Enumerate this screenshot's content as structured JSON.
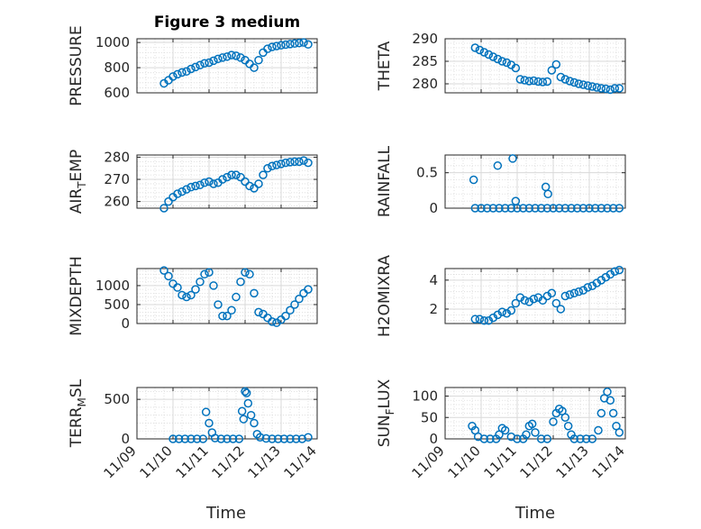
{
  "figure": {
    "title": "Figure 3 medium",
    "marker_color": "#0072BD",
    "grid_color": "#d9d9d9",
    "axis_color": "#262626"
  },
  "x_axis": {
    "label": "Time",
    "range": [
      "11/09",
      "11/14"
    ],
    "ticks": [
      "11/09",
      "11/10",
      "11/11",
      "11/12",
      "11/13",
      "11/14"
    ]
  },
  "chart_data": [
    {
      "type": "scatter",
      "ylabel": "PRESSURE",
      "ylim": [
        600,
        1030
      ],
      "yticks": [
        "600",
        "800",
        "1000"
      ],
      "x": [
        "11/09 18:00",
        "11/09 21:00",
        "11/10 00:00",
        "11/10 03:00",
        "11/10 06:00",
        "11/10 09:00",
        "11/10 12:00",
        "11/10 15:00",
        "11/10 18:00",
        "11/10 21:00",
        "11/11 00:00",
        "11/11 03:00",
        "11/11 06:00",
        "11/11 09:00",
        "11/11 12:00",
        "11/11 15:00",
        "11/11 18:00",
        "11/11 21:00",
        "11/12 00:00",
        "11/12 03:00",
        "11/12 06:00",
        "11/12 09:00",
        "11/12 12:00",
        "11/12 15:00",
        "11/12 18:00",
        "11/12 21:00",
        "11/13 00:00",
        "11/13 03:00",
        "11/13 06:00",
        "11/13 09:00",
        "11/13 12:00",
        "11/13 15:00",
        "11/13 18:00"
      ],
      "y": [
        675,
        700,
        730,
        748,
        762,
        770,
        790,
        805,
        820,
        835,
        840,
        855,
        870,
        880,
        888,
        900,
        895,
        880,
        860,
        830,
        800,
        860,
        920,
        950,
        965,
        972,
        978,
        983,
        988,
        992,
        996,
        1000,
        985
      ]
    },
    {
      "type": "scatter",
      "ylabel": "THETA",
      "ylim": [
        278,
        290
      ],
      "yticks": [
        "280",
        "285",
        "290"
      ],
      "x": [
        "11/09 20:00",
        "11/09 23:00",
        "11/10 02:00",
        "11/10 05:00",
        "11/10 08:00",
        "11/10 11:00",
        "11/10 14:00",
        "11/10 17:00",
        "11/10 20:00",
        "11/10 23:00",
        "11/11 02:00",
        "11/11 05:00",
        "11/11 08:00",
        "11/11 11:00",
        "11/11 14:00",
        "11/11 17:00",
        "11/11 20:00",
        "11/11 23:00",
        "11/12 02:00",
        "11/12 05:00",
        "11/12 08:00",
        "11/12 11:00",
        "11/12 14:00",
        "11/12 17:00",
        "11/12 20:00",
        "11/12 23:00",
        "11/13 02:00",
        "11/13 05:00",
        "11/13 08:00",
        "11/13 11:00",
        "11/13 14:00",
        "11/13 17:00",
        "11/13 20:00"
      ],
      "y": [
        288,
        287.5,
        287,
        286.5,
        286,
        285.5,
        285,
        284.7,
        284.2,
        283.5,
        281,
        280.8,
        280.6,
        280.7,
        280.5,
        280.4,
        280.5,
        283,
        284.3,
        281.5,
        281,
        280.6,
        280.3,
        280,
        279.8,
        279.6,
        279.4,
        279.2,
        279,
        278.9,
        278.7,
        279,
        279
      ]
    },
    {
      "type": "scatter",
      "ylabel": "AIR_TEMP",
      "ylim": [
        257,
        281
      ],
      "yticks": [
        "260",
        "270",
        "280"
      ],
      "x": [
        "11/09 18:00",
        "11/09 21:00",
        "11/10 00:00",
        "11/10 03:00",
        "11/10 06:00",
        "11/10 09:00",
        "11/10 12:00",
        "11/10 15:00",
        "11/10 18:00",
        "11/10 21:00",
        "11/11 00:00",
        "11/11 03:00",
        "11/11 06:00",
        "11/11 09:00",
        "11/11 12:00",
        "11/11 15:00",
        "11/11 18:00",
        "11/11 21:00",
        "11/12 00:00",
        "11/12 03:00",
        "11/12 06:00",
        "11/12 09:00",
        "11/12 12:00",
        "11/12 15:00",
        "11/12 18:00",
        "11/12 21:00",
        "11/13 00:00",
        "11/13 03:00",
        "11/13 06:00",
        "11/13 09:00",
        "11/13 12:00",
        "11/13 15:00",
        "11/13 18:00"
      ],
      "y": [
        257,
        260,
        262,
        263.5,
        264.5,
        265.5,
        266.5,
        267,
        267.5,
        268.5,
        269,
        268,
        268.5,
        270,
        271,
        272,
        272,
        271,
        269,
        267,
        266,
        268,
        272,
        275,
        276,
        276.5,
        277,
        277.5,
        277.8,
        278,
        278,
        278.5,
        277.5
      ]
    },
    {
      "type": "scatter",
      "ylabel": "RAINFALL",
      "ylim": [
        0,
        0.75
      ],
      "yticks": [
        "0",
        "0.5"
      ],
      "x": [
        "11/09 20:00",
        "11/10 00:00",
        "11/10 04:00",
        "11/10 08:00",
        "11/10 12:00",
        "11/10 16:00",
        "11/10 20:00",
        "11/11 00:00",
        "11/11 04:00",
        "11/11 08:00",
        "11/11 12:00",
        "11/11 16:00",
        "11/11 20:00",
        "11/12 00:00",
        "11/12 04:00",
        "11/12 08:00",
        "11/12 12:00",
        "11/12 16:00",
        "11/12 20:00",
        "11/13 00:00",
        "11/13 04:00",
        "11/13 08:00",
        "11/13 12:00",
        "11/13 16:00",
        "11/13 20:00",
        "11/09 19:00",
        "11/10 11:00",
        "11/10 21:00",
        "11/10 23:00",
        "11/11 19:00",
        "11/11 20:30"
      ],
      "y": [
        0,
        0,
        0,
        0,
        0,
        0,
        0,
        0,
        0,
        0,
        0,
        0,
        0,
        0,
        0,
        0,
        0,
        0,
        0,
        0,
        0,
        0,
        0,
        0,
        0,
        0.4,
        0.6,
        0.7,
        0.1,
        0.3,
        0.2
      ]
    },
    {
      "type": "scatter",
      "ylabel": "MIXDEPTH",
      "ylim": [
        0,
        1450
      ],
      "yticks": [
        "0",
        "500",
        "1000"
      ],
      "x": [
        "11/09 18:00",
        "11/09 21:00",
        "11/10 00:00",
        "11/10 03:00",
        "11/10 06:00",
        "11/10 09:00",
        "11/10 12:00",
        "11/10 15:00",
        "11/10 18:00",
        "11/10 21:00",
        "11/11 00:00",
        "11/11 03:00",
        "11/11 06:00",
        "11/11 09:00",
        "11/11 12:00",
        "11/11 15:00",
        "11/11 18:00",
        "11/11 21:00",
        "11/12 00:00",
        "11/12 03:00",
        "11/12 06:00",
        "11/12 09:00",
        "11/12 12:00",
        "11/12 15:00",
        "11/12 18:00",
        "11/12 21:00",
        "11/13 00:00",
        "11/13 03:00",
        "11/13 06:00",
        "11/13 09:00",
        "11/13 12:00",
        "11/13 15:00",
        "11/13 18:00"
      ],
      "y": [
        1400,
        1250,
        1050,
        950,
        750,
        700,
        750,
        900,
        1100,
        1300,
        1350,
        1000,
        500,
        200,
        200,
        350,
        700,
        1100,
        1350,
        1300,
        800,
        300,
        250,
        150,
        50,
        20,
        100,
        200,
        350,
        500,
        650,
        800,
        900
      ]
    },
    {
      "type": "scatter",
      "ylabel": "H2OMIXRA",
      "ylim": [
        1,
        4.8
      ],
      "yticks": [
        "2",
        "4"
      ],
      "x": [
        "11/09 20:00",
        "11/09 23:00",
        "11/10 02:00",
        "11/10 05:00",
        "11/10 08:00",
        "11/10 11:00",
        "11/10 14:00",
        "11/10 17:00",
        "11/10 20:00",
        "11/10 23:00",
        "11/11 02:00",
        "11/11 05:00",
        "11/11 08:00",
        "11/11 11:00",
        "11/11 14:00",
        "11/11 17:00",
        "11/11 20:00",
        "11/11 23:00",
        "11/12 02:00",
        "11/12 05:00",
        "11/12 08:00",
        "11/12 11:00",
        "11/12 14:00",
        "11/12 17:00",
        "11/12 20:00",
        "11/12 23:00",
        "11/13 02:00",
        "11/13 05:00",
        "11/13 08:00",
        "11/13 11:00",
        "11/13 14:00",
        "11/13 17:00",
        "11/13 20:00"
      ],
      "y": [
        1.3,
        1.3,
        1.2,
        1.2,
        1.4,
        1.6,
        1.8,
        1.7,
        1.9,
        2.4,
        2.8,
        2.6,
        2.5,
        2.7,
        2.8,
        2.6,
        2.9,
        3.1,
        2.4,
        2.0,
        2.9,
        3.0,
        3.1,
        3.2,
        3.3,
        3.5,
        3.6,
        3.8,
        4.0,
        4.2,
        4.4,
        4.6,
        4.7
      ]
    },
    {
      "type": "scatter",
      "ylabel": "TERR_MSL",
      "ylim": [
        0,
        650
      ],
      "yticks": [
        "0",
        "500"
      ],
      "x": [
        "11/10 00:00",
        "11/10 04:00",
        "11/10 08:00",
        "11/10 12:00",
        "11/10 16:00",
        "11/10 20:00",
        "11/11 00:00",
        "11/11 02:00",
        "11/11 04:00",
        "11/11 08:00",
        "11/11 12:00",
        "11/11 16:00",
        "11/11 20:00",
        "11/11 22:00",
        "11/12 00:00",
        "11/12 02:00",
        "11/12 04:00",
        "11/12 06:00",
        "11/12 08:00",
        "11/12 10:00",
        "11/12 14:00",
        "11/12 18:00",
        "11/12 22:00",
        "11/13 02:00",
        "11/13 06:00",
        "11/13 10:00",
        "11/13 14:00",
        "11/13 18:00",
        "11/10 22:00",
        "11/11 23:00",
        "11/12 01:00"
      ],
      "y": [
        0,
        0,
        0,
        0,
        0,
        0,
        200,
        80,
        10,
        0,
        0,
        0,
        0,
        350,
        600,
        450,
        300,
        200,
        60,
        20,
        5,
        0,
        0,
        0,
        0,
        0,
        0,
        20,
        340,
        250,
        580
      ]
    },
    {
      "type": "scatter",
      "ylabel": "SUN_FLUX",
      "ylim": [
        0,
        120
      ],
      "yticks": [
        "0",
        "50",
        "100"
      ],
      "x": [
        "11/09 18:00",
        "11/09 20:00",
        "11/09 22:00",
        "11/10 02:00",
        "11/10 06:00",
        "11/10 10:00",
        "11/10 12:00",
        "11/10 14:00",
        "11/10 16:00",
        "11/10 20:00",
        "11/11 00:00",
        "11/11 04:00",
        "11/11 06:00",
        "11/11 08:00",
        "11/11 10:00",
        "11/11 12:00",
        "11/11 16:00",
        "11/11 20:00",
        "11/12 00:00",
        "11/12 02:00",
        "11/12 04:00",
        "11/12 06:00",
        "11/12 08:00",
        "11/12 10:00",
        "11/12 12:00",
        "11/12 14:00",
        "11/12 18:00",
        "11/12 22:00",
        "11/13 02:00",
        "11/13 06:00",
        "11/13 08:00",
        "11/13 10:00",
        "11/13 12:00",
        "11/13 14:00",
        "11/13 16:00",
        "11/13 18:00",
        "11/13 20:00"
      ],
      "y": [
        30,
        20,
        5,
        0,
        0,
        0,
        10,
        25,
        20,
        5,
        0,
        0,
        10,
        30,
        35,
        15,
        0,
        0,
        40,
        60,
        70,
        65,
        50,
        30,
        10,
        0,
        0,
        0,
        0,
        20,
        60,
        95,
        110,
        90,
        60,
        30,
        15
      ]
    }
  ]
}
